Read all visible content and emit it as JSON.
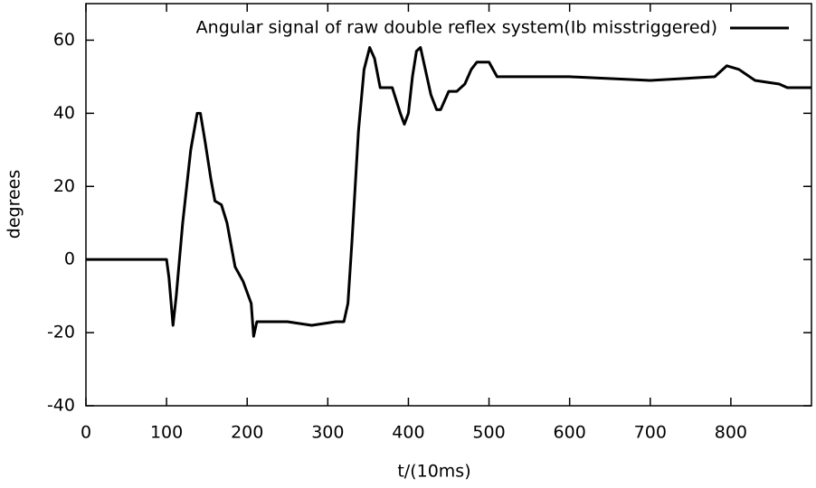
{
  "chart_data": {
    "type": "line",
    "xlabel": "t/(10ms)",
    "ylabel": "degrees",
    "xlim": [
      0,
      900
    ],
    "ylim": [
      -40,
      70
    ],
    "xticks": [
      0,
      100,
      200,
      300,
      400,
      500,
      600,
      700,
      800
    ],
    "yticks": [
      -40,
      -20,
      0,
      20,
      40,
      60
    ],
    "legend": "top right",
    "x": [
      0,
      100,
      103,
      108,
      112,
      120,
      130,
      138,
      142,
      148,
      155,
      160,
      168,
      175,
      185,
      195,
      205,
      208,
      212,
      220,
      250,
      280,
      310,
      320,
      325,
      330,
      338,
      345,
      352,
      358,
      365,
      380,
      390,
      395,
      400,
      405,
      410,
      415,
      420,
      428,
      435,
      440,
      450,
      460,
      470,
      478,
      485,
      500,
      510,
      600,
      700,
      780,
      795,
      810,
      830,
      860,
      870,
      900
    ],
    "series": [
      {
        "name": "Angular signal of raw double reflex system(Ib misstriggered)",
        "color": "#000000",
        "values": [
          0,
          0,
          -5,
          -18,
          -10,
          10,
          30,
          40,
          40,
          32,
          22,
          16,
          15,
          10,
          -2,
          -6,
          -12,
          -21,
          -17,
          -17,
          -17,
          -18,
          -17,
          -17,
          -12,
          5,
          35,
          52,
          58,
          55,
          47,
          47,
          40,
          37,
          40,
          50,
          57,
          58,
          53,
          45,
          41,
          41,
          46,
          46,
          48,
          52,
          54,
          54,
          50,
          50,
          49,
          50,
          53,
          52,
          49,
          48,
          47,
          47
        ]
      }
    ]
  }
}
